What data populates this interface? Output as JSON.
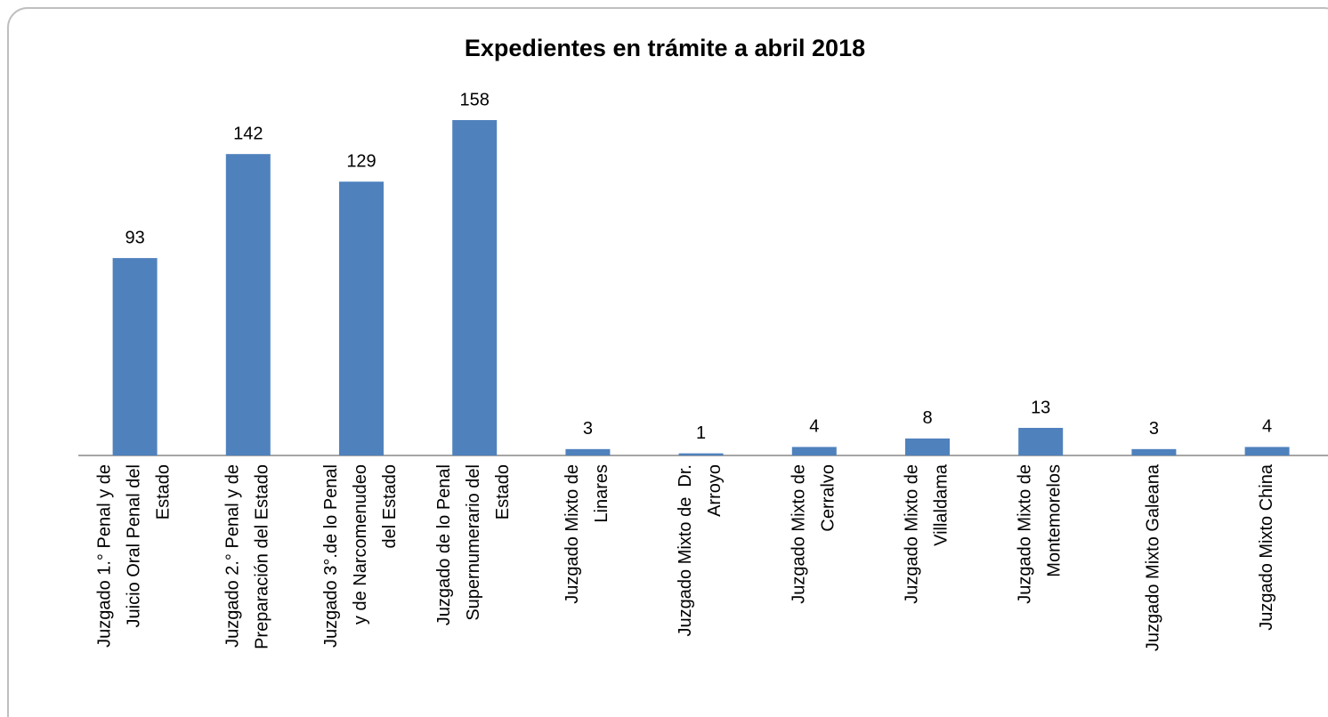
{
  "chart_data": {
    "type": "bar",
    "title": "Expedientes en trámite a abril 2018",
    "categories": [
      "Juzgado 1.° Penal y de\nJuicio Oral Penal del\nEstado",
      "Juzgado 2.° Penal y de\nPreparación del Estado",
      "Juzgado 3°.de lo Penal\ny de Narcomenudeo\ndel Estado",
      "Juzgado de lo Penal\nSupernumerario del\nEstado",
      "Juzgado Mixto de\nLinares",
      "Juzgado Mixto de  Dr.\nArroyo",
      "Juzgado Mixto de\nCerralvo",
      "Juzgado Mixto de\nVillaldama",
      "Juzgado Mixto de\nMontemorelos",
      "Juzgado Mixto Galeana",
      "Juzgado Mixto China"
    ],
    "values": [
      93,
      142,
      129,
      158,
      3,
      1,
      4,
      8,
      13,
      3,
      4
    ],
    "color": "#4f81bd"
  }
}
